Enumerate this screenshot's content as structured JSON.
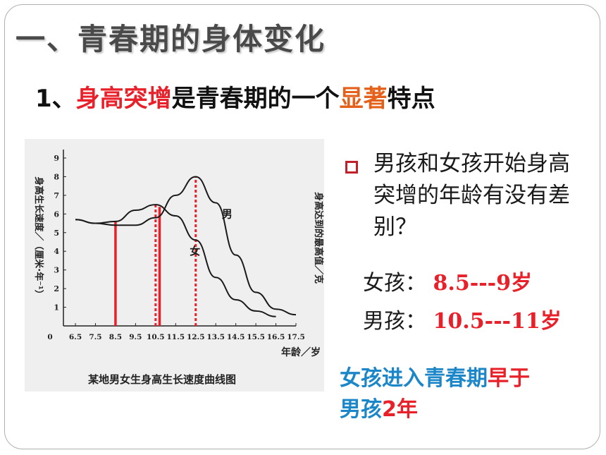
{
  "header": {
    "title": "一、青春期的身体变化"
  },
  "subtitle": {
    "prefix": "1、",
    "highlight1": "身高突增",
    "middle": "是青春期的一个",
    "highlight2": "显著",
    "suffix": "特点"
  },
  "question": {
    "text": "男孩和女孩开始身高突增的年龄有没有差别？"
  },
  "answers": [
    {
      "label": "女孩：",
      "value": "8.5---9岁"
    },
    {
      "label": "男孩：",
      "value": "10.5---11岁"
    }
  ],
  "conclusion": {
    "part1": "女孩进入青春期",
    "part2": "早于",
    "part3": "男孩",
    "part4": "2年"
  },
  "chart_data": {
    "type": "line",
    "caption": "某地男女生身高生长速度曲线图",
    "xlabel": "年龄／岁",
    "ylabel": "身高生长速度／（厘米·年⁻¹）",
    "ylabel_right": "身高达到的最高值／克",
    "x_ticks": [
      "0",
      "6.5",
      "7.5",
      "8.5",
      "9.5",
      "10.5",
      "11.5",
      "12.5",
      "13.5",
      "14.5",
      "15.5",
      "16.5",
      "17.5"
    ],
    "y_ticks": [
      "1",
      "2",
      "3",
      "4",
      "5",
      "6",
      "7",
      "8",
      "9"
    ],
    "xlim": [
      6.5,
      17.5
    ],
    "ylim": [
      0,
      9
    ],
    "series": [
      {
        "name": "男",
        "x": [
          6.5,
          7.5,
          8.5,
          9.5,
          10.5,
          11.5,
          12.5,
          13.5,
          14.5,
          15.5,
          16.5,
          17.5
        ],
        "values": [
          5.7,
          5.5,
          5.4,
          5.4,
          5.8,
          7.0,
          8.0,
          6.6,
          3.8,
          1.8,
          0.9,
          0.6
        ]
      },
      {
        "name": "女",
        "x": [
          6.5,
          7.5,
          8.5,
          9.5,
          10.5,
          11.5,
          12.5,
          13.5,
          14.5,
          15.5,
          16.5
        ],
        "values": [
          5.7,
          5.5,
          5.6,
          6.2,
          6.5,
          5.9,
          4.6,
          2.6,
          1.4,
          0.8,
          0.5
        ]
      }
    ],
    "markers": [
      {
        "x": 8.5,
        "style": "solid",
        "color": "#e8202a"
      },
      {
        "x": 10.5,
        "style": "dotted",
        "color": "#e8202a"
      },
      {
        "x": 10.7,
        "style": "solid",
        "color": "#e8202a"
      },
      {
        "x": 12.5,
        "style": "dotted",
        "color": "#e8202a"
      }
    ]
  }
}
